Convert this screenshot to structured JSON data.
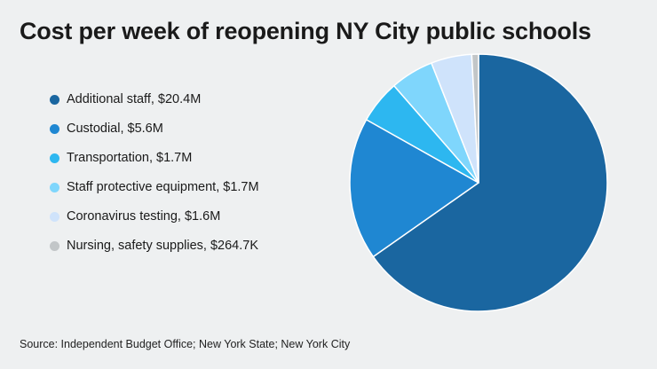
{
  "title": "Cost per week of reopening NY City public schools",
  "source": "Source: Independent Budget Office; New York State; New York City",
  "chart_data": {
    "type": "pie",
    "title": "Cost per week of reopening NY City public schools",
    "unit": "$M",
    "legend_position": "left",
    "slices": [
      {
        "label": "Additional staff, $20.4M",
        "value": 20.4,
        "color": "#1a66a0"
      },
      {
        "label": "Custodial, $5.6M",
        "value": 5.6,
        "color": "#1f87d2"
      },
      {
        "label": "Transportation, $1.7M",
        "value": 1.7,
        "color": "#2db7f0"
      },
      {
        "label": "Staff protective equipment, $1.7M",
        "value": 1.7,
        "color": "#7fd6fc"
      },
      {
        "label": "Coronavirus testing, $1.6M",
        "value": 1.6,
        "color": "#cfe3fb"
      },
      {
        "label": "Nursing, safety supplies, $264.7K",
        "value": 0.2647,
        "color": "#c2c6c8"
      }
    ]
  }
}
